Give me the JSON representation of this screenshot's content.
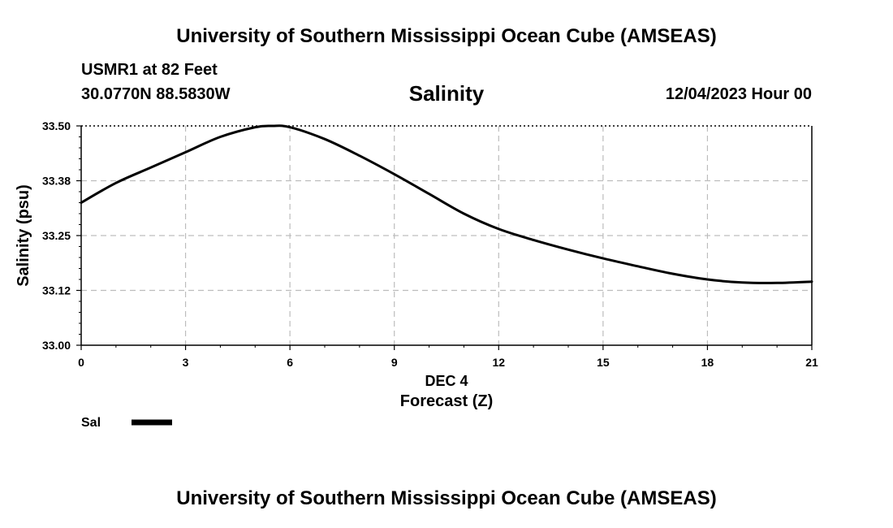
{
  "header": {
    "title_top": "University of Southern Mississippi Ocean Cube (AMSEAS)",
    "station": "USMR1 at 82 Feet",
    "coordinates": "30.0770N  88.5830W",
    "datetime": "12/04/2023 Hour 00",
    "title_bottom": "University of Southern Mississippi Ocean Cube (AMSEAS)"
  },
  "chart_data": {
    "type": "line",
    "title": "Salinity",
    "xlabel": "Forecast (Z)",
    "xlabel_date": "DEC 4",
    "ylabel": "Salinity (psu)",
    "xlim": [
      0,
      21
    ],
    "ylim": [
      33.0,
      33.5
    ],
    "xticks": [
      0,
      3,
      6,
      9,
      12,
      15,
      18,
      21
    ],
    "xtick_labels": [
      "0",
      "3",
      "6",
      "9",
      "12",
      "15",
      "18",
      "21"
    ],
    "yticks": [
      33.0,
      33.125,
      33.25,
      33.375,
      33.5
    ],
    "ytick_labels": [
      "33.00",
      "33.12",
      "33.25",
      "33.38",
      "33.50"
    ],
    "grid": true,
    "series": [
      {
        "name": "Sal",
        "color": "#000000",
        "x": [
          0,
          1,
          2,
          3,
          4,
          5,
          5.5,
          6,
          7,
          8,
          9,
          10,
          11,
          12,
          13,
          14,
          15,
          16,
          17,
          18,
          19,
          20,
          21
        ],
        "values": [
          33.325,
          33.37,
          33.405,
          33.44,
          33.475,
          33.497,
          33.5,
          33.497,
          33.47,
          33.432,
          33.39,
          33.345,
          33.3,
          33.265,
          33.24,
          33.218,
          33.198,
          33.18,
          33.163,
          33.15,
          33.143,
          33.142,
          33.145
        ]
      }
    ]
  }
}
